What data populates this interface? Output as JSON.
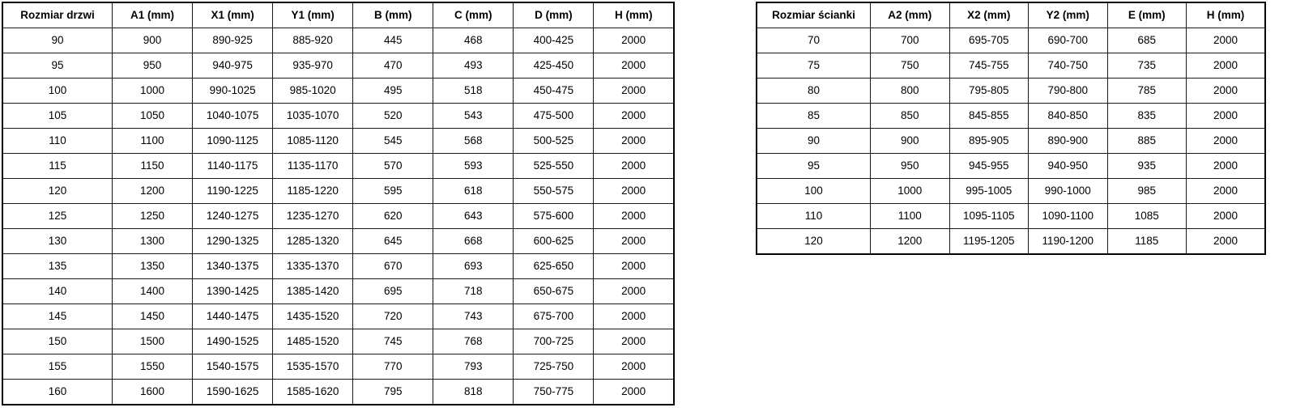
{
  "page": {
    "background_color": "#ffffff",
    "border_color": "#000000",
    "text_color": "#000000"
  },
  "tables": [
    {
      "name": "door-sizes",
      "headers": [
        "Rozmiar drzwi",
        "A1 (mm)",
        "X1 (mm)",
        "Y1 (mm)",
        "B (mm)",
        "C (mm)",
        "D (mm)",
        "H (mm)"
      ],
      "rows": [
        [
          "90",
          "900",
          "890-925",
          "885-920",
          "445",
          "468",
          "400-425",
          "2000"
        ],
        [
          "95",
          "950",
          "940-975",
          "935-970",
          "470",
          "493",
          "425-450",
          "2000"
        ],
        [
          "100",
          "1000",
          "990-1025",
          "985-1020",
          "495",
          "518",
          "450-475",
          "2000"
        ],
        [
          "105",
          "1050",
          "1040-1075",
          "1035-1070",
          "520",
          "543",
          "475-500",
          "2000"
        ],
        [
          "110",
          "1100",
          "1090-1125",
          "1085-1120",
          "545",
          "568",
          "500-525",
          "2000"
        ],
        [
          "115",
          "1150",
          "1140-1175",
          "1135-1170",
          "570",
          "593",
          "525-550",
          "2000"
        ],
        [
          "120",
          "1200",
          "1190-1225",
          "1185-1220",
          "595",
          "618",
          "550-575",
          "2000"
        ],
        [
          "125",
          "1250",
          "1240-1275",
          "1235-1270",
          "620",
          "643",
          "575-600",
          "2000"
        ],
        [
          "130",
          "1300",
          "1290-1325",
          "1285-1320",
          "645",
          "668",
          "600-625",
          "2000"
        ],
        [
          "135",
          "1350",
          "1340-1375",
          "1335-1370",
          "670",
          "693",
          "625-650",
          "2000"
        ],
        [
          "140",
          "1400",
          "1390-1425",
          "1385-1420",
          "695",
          "718",
          "650-675",
          "2000"
        ],
        [
          "145",
          "1450",
          "1440-1475",
          "1435-1520",
          "720",
          "743",
          "675-700",
          "2000"
        ],
        [
          "150",
          "1500",
          "1490-1525",
          "1485-1520",
          "745",
          "768",
          "700-725",
          "2000"
        ],
        [
          "155",
          "1550",
          "1540-1575",
          "1535-1570",
          "770",
          "793",
          "725-750",
          "2000"
        ],
        [
          "160",
          "1600",
          "1590-1625",
          "1585-1620",
          "795",
          "818",
          "750-775",
          "2000"
        ]
      ]
    },
    {
      "name": "wall-sizes",
      "headers": [
        "Rozmiar ścianki",
        "A2 (mm)",
        "X2 (mm)",
        "Y2 (mm)",
        "E (mm)",
        "H (mm)"
      ],
      "rows": [
        [
          "70",
          "700",
          "695-705",
          "690-700",
          "685",
          "2000"
        ],
        [
          "75",
          "750",
          "745-755",
          "740-750",
          "735",
          "2000"
        ],
        [
          "80",
          "800",
          "795-805",
          "790-800",
          "785",
          "2000"
        ],
        [
          "85",
          "850",
          "845-855",
          "840-850",
          "835",
          "2000"
        ],
        [
          "90",
          "900",
          "895-905",
          "890-900",
          "885",
          "2000"
        ],
        [
          "95",
          "950",
          "945-955",
          "940-950",
          "935",
          "2000"
        ],
        [
          "100",
          "1000",
          "995-1005",
          "990-1000",
          "985",
          "2000"
        ],
        [
          "110",
          "1100",
          "1095-1105",
          "1090-1100",
          "1085",
          "2000"
        ],
        [
          "120",
          "1200",
          "1195-1205",
          "1190-1200",
          "1185",
          "2000"
        ]
      ]
    }
  ]
}
